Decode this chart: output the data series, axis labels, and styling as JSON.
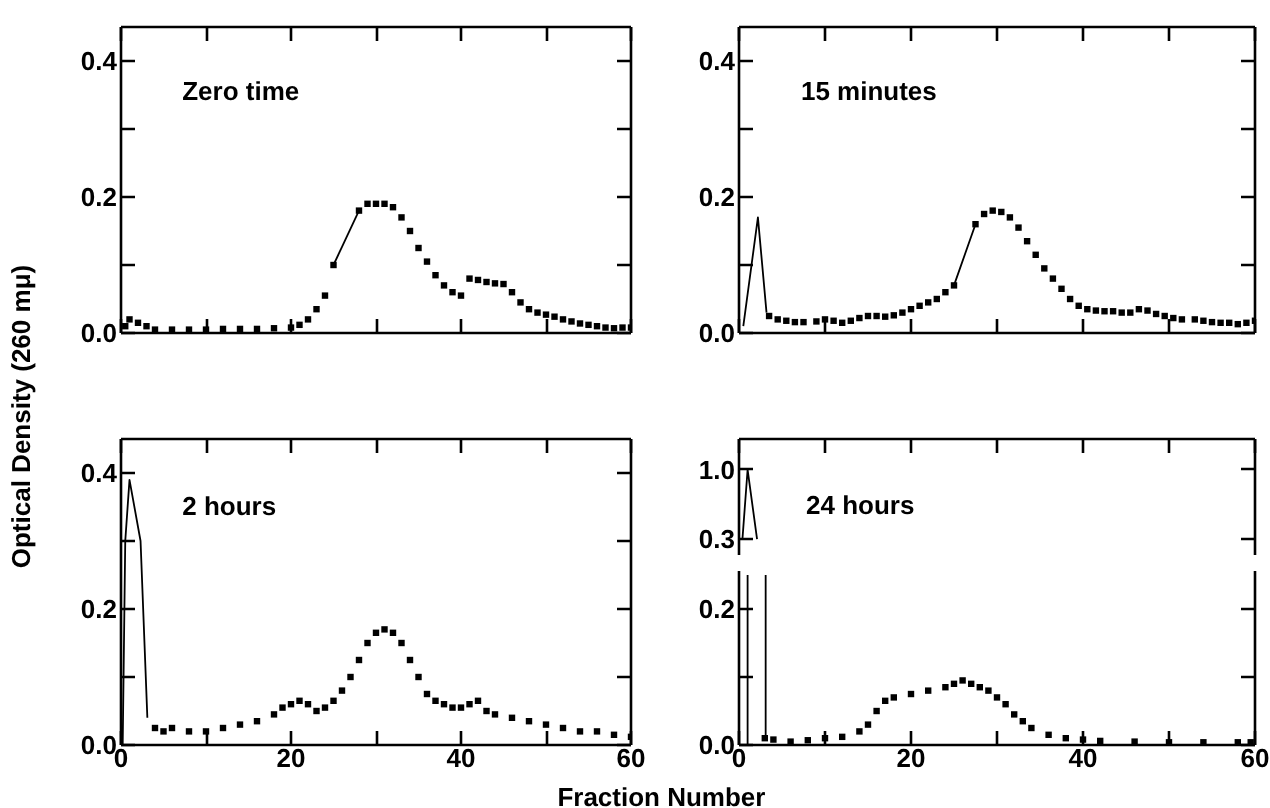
{
  "chart_data": [
    {
      "type": "scatter",
      "title": "Zero time",
      "tick_labels": "y",
      "xlim": [
        0,
        60
      ],
      "ylim": [
        0,
        0.45
      ],
      "xticks": [
        0,
        {
          "value": 10,
          "label": null
        },
        20,
        {
          "value": 30,
          "label": null
        },
        40,
        {
          "value": 50,
          "label": null
        },
        60
      ],
      "yticks": [
        {
          "value": 0,
          "label": "0.0"
        },
        {
          "value": 0.1,
          "label": null
        },
        {
          "value": 0.2,
          "label": "0.2"
        },
        {
          "value": 0.3,
          "label": null
        },
        {
          "value": 0.4,
          "label": "0.4"
        }
      ],
      "series": [
        {
          "marker": "square",
          "color": "#000000",
          "x": [
            0.5,
            1,
            2,
            3,
            4,
            6,
            8,
            10,
            12,
            14,
            16,
            18,
            20,
            21,
            22,
            23,
            24,
            25,
            28,
            29,
            30,
            31,
            32,
            33,
            34,
            35,
            36,
            37,
            38,
            39,
            40,
            41,
            42,
            43,
            44,
            45,
            46,
            47,
            48,
            49,
            50,
            51,
            52,
            53,
            54,
            55,
            56,
            57,
            58,
            59,
            60
          ],
          "values": [
            0.01,
            0.02,
            0.015,
            0.01,
            0.005,
            0.005,
            0.005,
            0.005,
            0.006,
            0.006,
            0.006,
            0.007,
            0.008,
            0.012,
            0.02,
            0.035,
            0.055,
            0.1,
            0.18,
            0.19,
            0.19,
            0.19,
            0.185,
            0.17,
            0.15,
            0.125,
            0.105,
            0.085,
            0.07,
            0.06,
            0.055,
            0.08,
            0.078,
            0.075,
            0.073,
            0.072,
            0.06,
            0.045,
            0.035,
            0.03,
            0.027,
            0.024,
            0.02,
            0.017,
            0.014,
            0.012,
            0.01,
            0.008,
            0.007,
            0.008,
            0.008
          ]
        },
        {
          "type": "line",
          "color": "#000000",
          "x": [
            25,
            28
          ],
          "values": [
            0.1,
            0.18
          ]
        }
      ]
    },
    {
      "type": "scatter",
      "title": "15 minutes",
      "tick_labels": "y",
      "xlim": [
        0,
        60
      ],
      "ylim": [
        0,
        0.45
      ],
      "xticks": [
        0,
        {
          "value": 10,
          "label": null
        },
        20,
        {
          "value": 30,
          "label": null
        },
        40,
        {
          "value": 50,
          "label": null
        },
        60
      ],
      "yticks": [
        {
          "value": 0,
          "label": "0.0"
        },
        {
          "value": 0.1,
          "label": null
        },
        {
          "value": 0.2,
          "label": "0.2"
        },
        {
          "value": 0.3,
          "label": null
        },
        {
          "value": 0.4,
          "label": "0.4"
        }
      ],
      "series": [
        {
          "marker": "square",
          "color": "#000000",
          "x": [
            3.5,
            4.5,
            5.5,
            6.5,
            7.5,
            9,
            10,
            11,
            12,
            13,
            14,
            15,
            16,
            17,
            18,
            19,
            20,
            21,
            22,
            23,
            24,
            25,
            27.5,
            28.5,
            29.5,
            30.5,
            31.5,
            32.5,
            33.5,
            34.5,
            35.5,
            36.5,
            37.5,
            38.5,
            39.5,
            40.5,
            41.5,
            42.5,
            43.5,
            44.5,
            45.5,
            46.5,
            47.5,
            48.5,
            49.5,
            50.5,
            51.5,
            53,
            54,
            55,
            56,
            57,
            58,
            59,
            60
          ],
          "values": [
            0.025,
            0.02,
            0.018,
            0.016,
            0.016,
            0.017,
            0.02,
            0.018,
            0.015,
            0.018,
            0.022,
            0.025,
            0.025,
            0.024,
            0.026,
            0.03,
            0.035,
            0.04,
            0.045,
            0.05,
            0.06,
            0.07,
            0.16,
            0.175,
            0.18,
            0.178,
            0.17,
            0.155,
            0.135,
            0.115,
            0.095,
            0.08,
            0.065,
            0.05,
            0.04,
            0.035,
            0.033,
            0.032,
            0.032,
            0.03,
            0.03,
            0.035,
            0.033,
            0.028,
            0.025,
            0.022,
            0.02,
            0.02,
            0.018,
            0.016,
            0.015,
            0.015,
            0.013,
            0.015,
            0.018
          ]
        },
        {
          "type": "line",
          "color": "#000000",
          "x": [
            0.5,
            2.2,
            3.2,
            14,
            25,
            27.5
          ],
          "values": [
            0.01,
            0.17,
            0.03,
            null,
            0.07,
            0.16
          ]
        }
      ]
    },
    {
      "type": "scatter",
      "title": "2 hours",
      "ylabel": "Optical Density (260 mμ)",
      "xlim": [
        0,
        60
      ],
      "ylim": [
        0,
        0.45
      ],
      "xticks": [
        0,
        {
          "value": 10,
          "label": null
        },
        20,
        {
          "value": 30,
          "label": null
        },
        40,
        {
          "value": 50,
          "label": null
        },
        60
      ],
      "yticks": [
        {
          "value": 0,
          "label": "0.0"
        },
        {
          "value": 0.1,
          "label": null
        },
        {
          "value": 0.2,
          "label": "0.2"
        },
        {
          "value": 0.3,
          "label": null
        },
        {
          "value": 0.4,
          "label": "0.4"
        }
      ],
      "series": [
        {
          "marker": "square",
          "color": "#000000",
          "x": [
            4,
            5,
            6,
            8,
            10,
            12,
            14,
            16,
            18,
            19,
            20,
            21,
            22,
            23,
            24,
            25,
            26,
            27,
            28,
            29,
            30,
            31,
            32,
            33,
            34,
            35,
            36,
            37,
            38,
            39,
            40,
            41,
            42,
            43,
            44,
            46,
            48,
            50,
            52,
            54,
            56,
            58,
            60
          ],
          "values": [
            0.025,
            0.02,
            0.025,
            0.02,
            0.02,
            0.025,
            0.03,
            0.035,
            0.045,
            0.055,
            0.06,
            0.065,
            0.06,
            0.05,
            0.055,
            0.065,
            0.08,
            0.1,
            0.125,
            0.15,
            0.165,
            0.17,
            0.165,
            0.15,
            0.125,
            0.1,
            0.075,
            0.065,
            0.06,
            0.055,
            0.055,
            0.06,
            0.065,
            0.05,
            0.045,
            0.04,
            0.035,
            0.03,
            0.025,
            0.02,
            0.02,
            0.015,
            0.012
          ]
        },
        {
          "type": "line",
          "color": "#000000",
          "x": [
            0.2,
            0.5,
            1,
            2.3,
            3.1
          ],
          "values": [
            0,
            0.3,
            0.39,
            0.3,
            0.04
          ]
        }
      ]
    },
    {
      "type": "line",
      "title": "24 hours",
      "tick_labels": "y",
      "xlim": [
        0,
        60
      ],
      "ylim": [
        0.14,
        1.31
      ],
      "xticks": [
        0,
        {
          "value": 10,
          "label": null
        },
        20,
        {
          "value": 30,
          "label": null
        },
        40,
        {
          "value": 50,
          "label": null
        },
        60
      ],
      "yticks": [
        {
          "value": 0.3,
          "label": "0.3"
        },
        {
          "value": 1.0,
          "label": "1.0"
        }
      ],
      "series": [
        {
          "color": "#000000",
          "x": [
            0.4,
            1,
            2.1
          ],
          "values": [
            0.3,
            1.0,
            0.3
          ]
        }
      ]
    },
    {
      "type": "scatter",
      "xlabel": "Fraction Number",
      "xlim": [
        0,
        60
      ],
      "ylim": [
        0,
        0.256
      ],
      "xticks": [
        0,
        {
          "value": 10,
          "label": null
        },
        20,
        {
          "value": 30,
          "label": null
        },
        40,
        {
          "value": 50,
          "label": null
        },
        60
      ],
      "yticks": [
        {
          "value": 0,
          "label": "0.0"
        },
        {
          "value": 0.1,
          "label": null
        },
        {
          "value": 0.2,
          "label": "0.2"
        }
      ],
      "series": [
        {
          "marker": "square",
          "color": "#000000",
          "x": [
            3,
            4,
            6,
            8,
            10,
            12,
            14,
            15,
            16,
            17,
            18,
            20,
            22,
            24,
            25,
            26,
            27,
            28,
            29,
            30,
            31,
            32,
            33,
            34,
            36,
            38,
            40,
            42,
            46,
            50,
            54,
            58,
            59.5
          ],
          "values": [
            0.01,
            0.008,
            0.005,
            0.007,
            0.01,
            0.012,
            0.02,
            0.03,
            0.05,
            0.065,
            0.07,
            0.075,
            0.08,
            0.085,
            0.09,
            0.095,
            0.09,
            0.085,
            0.08,
            0.07,
            0.06,
            0.045,
            0.035,
            0.025,
            0.015,
            0.01,
            0.008,
            0.006,
            0.005,
            0.004,
            0.004,
            0.004,
            0.004
          ]
        },
        {
          "type": "line",
          "color": "#000000",
          "x": [
            1,
            1,
            2,
            3.1,
            3.1
          ],
          "values": [
            0,
            0.25,
            null,
            0.25,
            0.01
          ]
        }
      ]
    }
  ]
}
